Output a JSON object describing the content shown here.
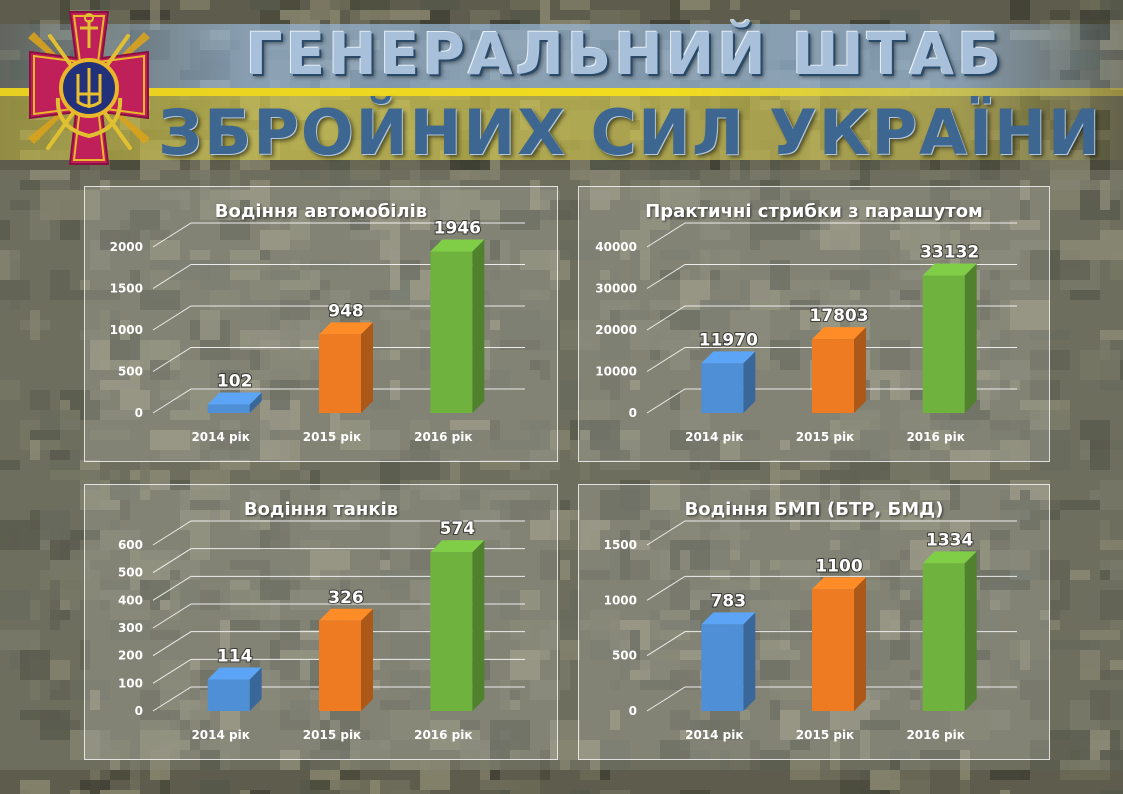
{
  "header": {
    "line1": "ГЕНЕРАЛЬНИЙ ШТАБ",
    "line2": "ЗБРОЙНИХ СИЛ УКРАЇНИ"
  },
  "emblem": {
    "icon": "armed-forces-cross-emblem-icon"
  },
  "colors": {
    "bar_2014": "#4f8fd6",
    "bar_2015": "#ee7a22",
    "bar_2016": "#6fb33e",
    "banner_blue": "#9ab6d6",
    "banner_yellow": "#f3dd1f",
    "emblem_red": "#c0205a"
  },
  "chart_data": [
    {
      "type": "bar",
      "title": "Водіння автомобілів",
      "categories": [
        "2014 рік",
        "2015 рік",
        "2016 рік"
      ],
      "values": [
        102,
        948,
        1946
      ],
      "yticks": [
        "0",
        "500",
        "1000",
        "1500",
        "2000"
      ],
      "ylim": [
        0,
        2000
      ],
      "grid": true,
      "style": "3d-column"
    },
    {
      "type": "bar",
      "title": "Практичні стрибки з парашутом",
      "categories": [
        "2014 рік",
        "2015 рік",
        "2016 рік"
      ],
      "values": [
        11970,
        17803,
        33132
      ],
      "yticks": [
        "0",
        "10000",
        "20000",
        "30000",
        "40000"
      ],
      "ylim": [
        0,
        40000
      ],
      "grid": true,
      "style": "3d-column"
    },
    {
      "type": "bar",
      "title": "Водіння танків",
      "categories": [
        "2014 рік",
        "2015 рік",
        "2016 рік"
      ],
      "values": [
        114,
        326,
        574
      ],
      "yticks": [
        "0",
        "100",
        "200",
        "300",
        "400",
        "500",
        "600"
      ],
      "ylim": [
        0,
        600
      ],
      "grid": true,
      "style": "3d-column"
    },
    {
      "type": "bar",
      "title": "Водіння БМП (БТР, БМД)",
      "categories": [
        "2014 рік",
        "2015 рік",
        "2016 рік"
      ],
      "values": [
        783,
        1100,
        1334
      ],
      "yticks": [
        "0",
        "500",
        "1000",
        "1500"
      ],
      "ylim": [
        0,
        1500
      ],
      "grid": true,
      "style": "3d-column"
    }
  ]
}
